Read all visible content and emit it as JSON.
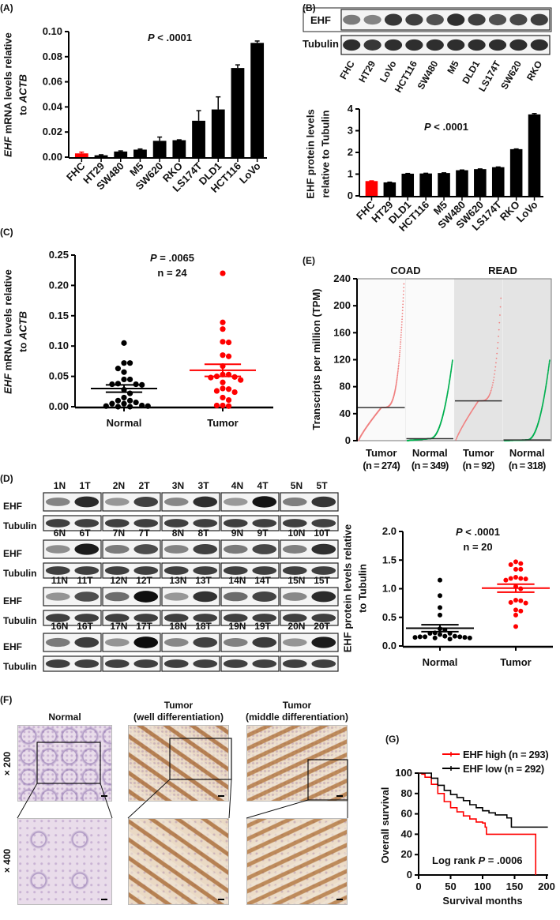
{
  "panel_labels": {
    "A": "(A)",
    "B": "(B)",
    "C": "(C)",
    "D": "(D)",
    "E": "(E)",
    "F": "(F)",
    "G": "(G)"
  },
  "colors": {
    "red": "#ff0000",
    "black": "#000000",
    "green": "#00b050",
    "pink": "#f08080",
    "read_bg": "#e4e4e4",
    "coad_bg": "#fafafa"
  },
  "blot_B": {
    "rows": [
      "EHF",
      "Tubulin"
    ],
    "lanes": [
      "FHC",
      "HT29",
      "LoVo",
      "HCT116",
      "SW480",
      "M5",
      "DLD1",
      "LS174T",
      "SW620",
      "RKO"
    ]
  },
  "blot_D": {
    "rows": [
      "EHF",
      "Tubulin"
    ],
    "pairs": [
      [
        "1N",
        "1T"
      ],
      [
        "2N",
        "2T"
      ],
      [
        "3N",
        "3T"
      ],
      [
        "4N",
        "4T"
      ],
      [
        "5N",
        "5T"
      ],
      [
        "6N",
        "6T"
      ],
      [
        "7N",
        "7T"
      ],
      [
        "8N",
        "8T"
      ],
      [
        "9N",
        "9T"
      ],
      [
        "10N",
        "10T"
      ],
      [
        "11N",
        "11T"
      ],
      [
        "12N",
        "12T"
      ],
      [
        "13N",
        "13T"
      ],
      [
        "14N",
        "14T"
      ],
      [
        "15N",
        "15T"
      ],
      [
        "16N",
        "16T"
      ],
      [
        "17N",
        "17T"
      ],
      [
        "18N",
        "18T"
      ],
      [
        "19N",
        "19T"
      ],
      [
        "20N",
        "20T"
      ]
    ]
  },
  "histology": {
    "columns": [
      {
        "line1": "Normal",
        "line2": ""
      },
      {
        "line1": "Tumor",
        "line2": "(well differentiation)"
      },
      {
        "line1": "Tumor",
        "line2": "(middle differentiation)"
      }
    ],
    "rows": [
      "× 200",
      "× 400"
    ]
  },
  "chart_data": [
    {
      "id": "A",
      "type": "bar",
      "categories": [
        "FHC",
        "HT29",
        "SW480",
        "M5",
        "SW620",
        "RKO",
        "LS174T",
        "DLD1",
        "HCT116",
        "LoVo"
      ],
      "values": [
        0.003,
        0.0015,
        0.0045,
        0.006,
        0.013,
        0.0135,
        0.029,
        0.038,
        0.071,
        0.091
      ],
      "errors": [
        0.001,
        0.0004,
        0.0005,
        0.0005,
        0.003,
        0.0003,
        0.008,
        0.01,
        0.0025,
        0.0015
      ],
      "highlight": "FHC",
      "annotation": {
        "italic": "P",
        "rest": " < .0001"
      },
      "ylabel": {
        "l1a": "EHF",
        "l1b": " mRNA levels relative",
        "l2a": "to ",
        "l2b": "ACTB"
      },
      "ylim": [
        0,
        0.1
      ],
      "yticks": [
        "0.00",
        "0.02",
        "0.04",
        "0.06",
        "0.08",
        "0.10"
      ]
    },
    {
      "id": "B",
      "type": "bar",
      "categories": [
        "FHC",
        "HT29",
        "DLD1",
        "HCT116",
        "M5",
        "SW480",
        "SW620",
        "LS174T",
        "RKO",
        "LoVo"
      ],
      "values": [
        0.68,
        0.62,
        1.02,
        1.03,
        1.05,
        1.18,
        1.23,
        1.32,
        2.15,
        3.75
      ],
      "errors": [
        0.01,
        0.01,
        0.01,
        0.01,
        0.01,
        0.01,
        0.01,
        0.01,
        0.01,
        0.04
      ],
      "highlight": "FHC",
      "annotation": {
        "italic": "P",
        "rest": " < .0001"
      },
      "ylabel": {
        "l1": "EHF protein levels",
        "l2": "relative to Tubulin"
      },
      "ylim": [
        0,
        4
      ],
      "yticks": [
        "0",
        "1",
        "2",
        "3",
        "4"
      ]
    },
    {
      "id": "C",
      "type": "scatter",
      "categories": [
        "Normal",
        "Tumor"
      ],
      "series": [
        {
          "name": "Normal",
          "values": [
            0.105,
            0.072,
            0.072,
            0.063,
            0.057,
            0.045,
            0.045,
            0.038,
            0.037,
            0.037,
            0.036,
            0.028,
            0.022,
            0.015,
            0.01,
            0.01,
            0.007,
            0.005,
            0.005,
            0.002,
            0.001,
            0.0,
            0.0,
            0.001
          ],
          "mean": 0.03,
          "sem": 0.006
        },
        {
          "name": "Tumor",
          "values": [
            0.22,
            0.139,
            0.128,
            0.107,
            0.106,
            0.085,
            0.083,
            0.067,
            0.053,
            0.053,
            0.05,
            0.049,
            0.048,
            0.044,
            0.04,
            0.03,
            0.029,
            0.026,
            0.024,
            0.015,
            0.011,
            0.002,
            0.002,
            0.001
          ],
          "mean": 0.06,
          "sem": 0.01
        }
      ],
      "annotation": {
        "italic": "P",
        "rest": " = .0065",
        "n": "n = 24"
      },
      "ylabel": {
        "l1a": "EHF",
        "l1b": " mRNA levels relative",
        "l2a": "to ",
        "l2b": "ACTB"
      },
      "ylim": [
        0,
        0.25
      ],
      "yticks": [
        "0.00",
        "0.05",
        "0.10",
        "0.15",
        "0.20",
        "0.25"
      ]
    },
    {
      "id": "D",
      "type": "scatter",
      "categories": [
        "Normal",
        "Tumor"
      ],
      "series": [
        {
          "name": "Normal",
          "values": [
            1.15,
            0.88,
            0.67,
            0.54,
            0.3,
            0.28,
            0.23,
            0.22,
            0.22,
            0.2,
            0.17,
            0.17,
            0.16,
            0.16,
            0.16,
            0.15,
            0.15,
            0.14,
            0.14,
            0.12
          ],
          "mean": 0.31,
          "sem": 0.06
        },
        {
          "name": "Tumor",
          "values": [
            1.47,
            1.44,
            1.42,
            1.34,
            1.34,
            1.2,
            1.18,
            1.18,
            1.17,
            1.15,
            1.04,
            1.0,
            0.8,
            0.79,
            0.76,
            0.75,
            0.63,
            0.61,
            0.54,
            0.34
          ],
          "mean": 1.01,
          "sem": 0.07
        }
      ],
      "annotation": {
        "italic": "P",
        "rest": " < .0001",
        "n": "n = 20"
      },
      "ylabel": {
        "l1": "EHF protein levels relative",
        "l2": "to Tubulin"
      },
      "ylim": [
        0,
        2
      ],
      "yticks": [
        "0.0",
        "0.5",
        "1.0",
        "1.5",
        "2.0"
      ]
    },
    {
      "id": "E",
      "type": "scatter",
      "facets": [
        "COAD",
        "READ"
      ],
      "groups": [
        {
          "label": "Tumor",
          "n": "(n = 274)",
          "facet": "COAD",
          "kind": "tumor",
          "median": 49,
          "max": 235
        },
        {
          "label": "Normal",
          "n": "(n = 349)",
          "facet": "COAD",
          "kind": "normal",
          "median": 3,
          "max": 120
        },
        {
          "label": "Tumor",
          "n": "(n = 92)",
          "facet": "READ",
          "kind": "tumor",
          "median": 59,
          "max": 218
        },
        {
          "label": "Normal",
          "n": "(n = 318)",
          "facet": "READ",
          "kind": "normal",
          "median": 1,
          "max": 120
        }
      ],
      "ylabel": "Transcripts per million (TPM)",
      "ylim": [
        0,
        240
      ],
      "yticks": [
        "0",
        "40",
        "80",
        "120",
        "160",
        "200",
        "240"
      ]
    },
    {
      "id": "G",
      "type": "line",
      "series": [
        {
          "name": "EHF high (n = 293)",
          "color": "#ff0000",
          "points": [
            [
              0,
              100
            ],
            [
              5,
              99
            ],
            [
              10,
              96
            ],
            [
              20,
              89
            ],
            [
              30,
              80
            ],
            [
              40,
              72
            ],
            [
              50,
              66
            ],
            [
              60,
              62
            ],
            [
              70,
              58
            ],
            [
              80,
              55
            ],
            [
              90,
              52
            ],
            [
              100,
              51
            ],
            [
              104,
              47
            ],
            [
              106,
              40
            ],
            [
              183,
              40
            ],
            [
              183,
              0
            ]
          ]
        },
        {
          "name": "EHF low (n = 292)",
          "color": "#000000",
          "points": [
            [
              0,
              100
            ],
            [
              10,
              100
            ],
            [
              20,
              95
            ],
            [
              30,
              88
            ],
            [
              40,
              83
            ],
            [
              50,
              79
            ],
            [
              60,
              76
            ],
            [
              70,
              73
            ],
            [
              80,
              69
            ],
            [
              90,
              66
            ],
            [
              100,
              63
            ],
            [
              110,
              61
            ],
            [
              120,
              59
            ],
            [
              130,
              59
            ],
            [
              138,
              56
            ],
            [
              145,
              56
            ],
            [
              145,
              47
            ],
            [
              202,
              47
            ]
          ]
        }
      ],
      "annotation": {
        "pre": "Log rank ",
        "italic": "P",
        "rest": " = .0006"
      },
      "xlabel": "Survival months",
      "ylabel": "Overall survival",
      "xlim": [
        0,
        200
      ],
      "ylim": [
        0,
        100
      ],
      "xticks": [
        "0",
        "50",
        "100",
        "150",
        "200"
      ],
      "yticks": [
        "0",
        "20",
        "40",
        "60",
        "80",
        "100"
      ]
    }
  ]
}
